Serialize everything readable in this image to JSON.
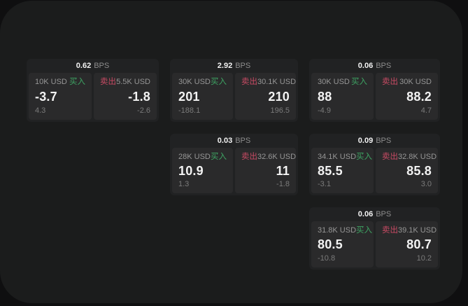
{
  "labels": {
    "bps": "BPS",
    "buy": "买入",
    "sell": "卖出"
  },
  "colors": {
    "buy_green": "#3ea463",
    "sell_red": "#c94b64",
    "card_bg": "#212223",
    "panel_bg": "#2a2a2b",
    "screen_bg": "#1b1c1c"
  },
  "cards": [
    {
      "bps": "0.62",
      "buy": {
        "size": "10K USD",
        "price": "-3.7",
        "delta": "4.3"
      },
      "sell": {
        "size": "5.5K USD",
        "price": "-1.8",
        "delta": "-2.6"
      }
    },
    {
      "bps": "2.92",
      "buy": {
        "size": "30K USD",
        "price": "201",
        "delta": "-188.1"
      },
      "sell": {
        "size": "30.1K USD",
        "price": "210",
        "delta": "196.5"
      }
    },
    {
      "bps": "0.06",
      "buy": {
        "size": "30K USD",
        "price": "88",
        "delta": "-4.9"
      },
      "sell": {
        "size": "30K USD",
        "price": "88.2",
        "delta": "4.7"
      }
    },
    {
      "bps": "0.03",
      "buy": {
        "size": "28K USD",
        "price": "10.9",
        "delta": "1.3"
      },
      "sell": {
        "size": "32.6K USD",
        "price": "11",
        "delta": "-1.8"
      }
    },
    {
      "bps": "0.09",
      "buy": {
        "size": "34.1K USD",
        "price": "85.5",
        "delta": "-3.1"
      },
      "sell": {
        "size": "32.8K USD",
        "price": "85.8",
        "delta": "3.0"
      }
    },
    {
      "bps": "0.06",
      "buy": {
        "size": "31.8K USD",
        "price": "80.5",
        "delta": "-10.8"
      },
      "sell": {
        "size": "39.1K USD",
        "price": "80.7",
        "delta": "10.2"
      }
    }
  ]
}
